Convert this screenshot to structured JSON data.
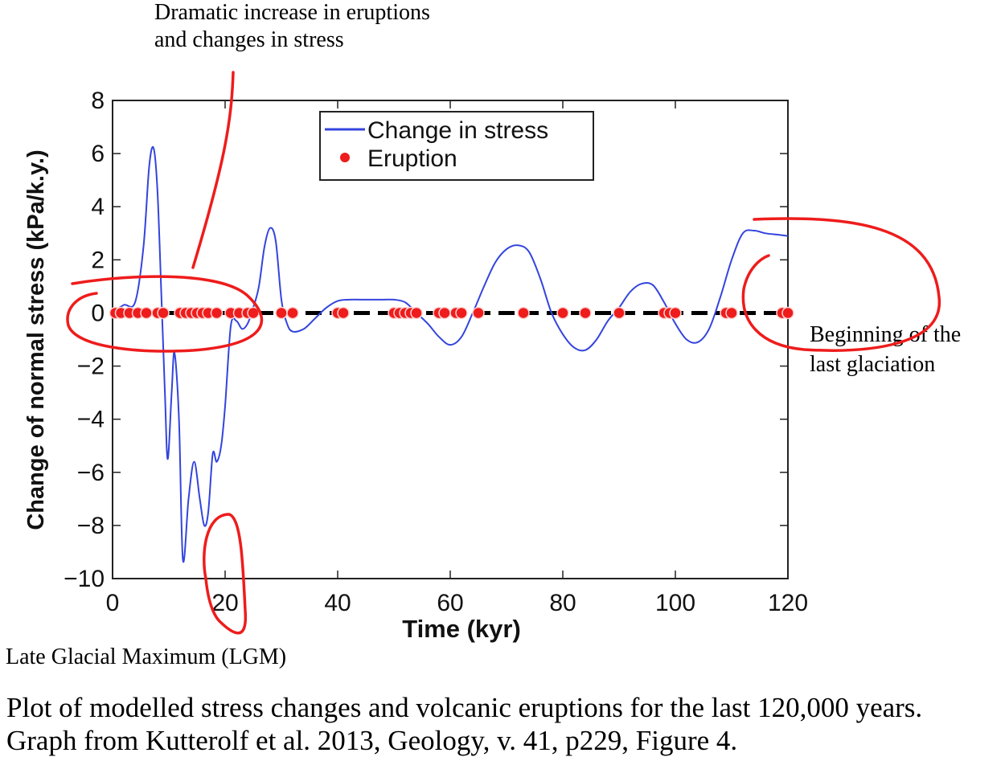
{
  "annotations": {
    "top_line1": "Dramatic increase in eruptions",
    "top_line2": "and changes in stress",
    "right_line1": "Beginning of the",
    "right_line2": "last glaciation",
    "bottom_left": "Late Glacial Maximum (LGM)"
  },
  "caption": {
    "line1": "Plot of modelled stress changes and volcanic eruptions for the last 120,000 years.",
    "line2": "Graph from Kutterolf et al. 2013, Geology, v. 41, p229, Figure 4."
  },
  "colors": {
    "stress_line": "#3344dd",
    "eruption_dot": "#ee1c1c",
    "annotation_ink": "#ee1c1c",
    "zero_line": "#000000"
  },
  "chart_data": {
    "type": "line",
    "xlabel": "Time (kyr)",
    "ylabel": "Change of normal stress (kPa/k.y.)",
    "xlim": [
      0,
      120
    ],
    "ylim": [
      -10,
      8
    ],
    "xticks": [
      0,
      20,
      40,
      60,
      80,
      100,
      120
    ],
    "yticks": [
      8,
      6,
      4,
      2,
      0,
      -2,
      -4,
      -6,
      -8,
      -10
    ],
    "legend_position": "top-center",
    "series": [
      {
        "name": "Change in stress",
        "style": "line",
        "x": [
          0,
          2,
          4,
          5.5,
          6.5,
          7.3,
          8,
          8.7,
          9.3,
          9.8,
          10.5,
          11,
          11.8,
          12.5,
          13.5,
          14.5,
          15.5,
          16.3,
          17,
          17.8,
          18.5,
          19.3,
          20,
          21,
          22,
          23,
          24,
          25,
          26,
          27,
          28,
          29,
          30,
          31,
          32,
          34,
          36,
          38,
          40,
          42,
          45,
          48,
          50,
          52,
          54,
          56,
          58,
          60,
          62,
          64,
          66,
          68,
          70,
          72,
          74,
          76,
          78,
          80,
          82,
          84,
          86,
          88,
          90,
          92,
          94,
          96,
          98,
          100,
          102,
          104,
          106,
          108,
          110,
          112,
          114,
          116,
          118,
          120
        ],
        "y": [
          0,
          0.3,
          0.4,
          2.5,
          5.5,
          6.2,
          4.5,
          0.5,
          -3.0,
          -5.5,
          -3.0,
          -1.5,
          -4.0,
          -9.3,
          -7.0,
          -5.6,
          -7.0,
          -8.0,
          -7.5,
          -5.3,
          -5.6,
          -5.0,
          -3.5,
          -0.5,
          -0.3,
          -0.6,
          -0.4,
          0.2,
          1.0,
          2.5,
          3.2,
          2.7,
          0.5,
          -0.4,
          -0.7,
          -0.6,
          -0.2,
          0.2,
          0.45,
          0.5,
          0.5,
          0.5,
          0.5,
          0.4,
          0.0,
          -0.4,
          -0.9,
          -1.2,
          -0.9,
          0.0,
          1.0,
          1.9,
          2.4,
          2.55,
          2.3,
          1.3,
          0.0,
          -0.8,
          -1.3,
          -1.4,
          -1.0,
          -0.3,
          0.2,
          0.8,
          1.1,
          1.05,
          0.4,
          -0.4,
          -1.0,
          -1.1,
          -0.6,
          0.6,
          2.0,
          3.0,
          3.1,
          3.0,
          2.95,
          2.9
        ]
      },
      {
        "name": "Eruption",
        "style": "markers",
        "x": [
          0.5,
          1.5,
          3,
          4.5,
          6,
          8,
          9,
          12,
          13,
          14,
          15,
          16,
          17,
          18.5,
          21,
          22.5,
          24,
          25,
          30,
          32,
          40,
          41,
          50,
          51,
          52,
          53,
          54,
          58,
          59,
          61,
          62,
          65,
          73,
          80,
          84,
          90,
          98,
          99,
          100,
          109,
          110,
          119,
          120
        ],
        "y": [
          0,
          0,
          0,
          0,
          0,
          0,
          0,
          0,
          0,
          0,
          0,
          0,
          0,
          0,
          0,
          0,
          0,
          0,
          0,
          0,
          0,
          0,
          0,
          0,
          0,
          0,
          0,
          0,
          0,
          0,
          0,
          0,
          0,
          0,
          0,
          0,
          0,
          0,
          0,
          0,
          0,
          0,
          0
        ]
      }
    ]
  }
}
